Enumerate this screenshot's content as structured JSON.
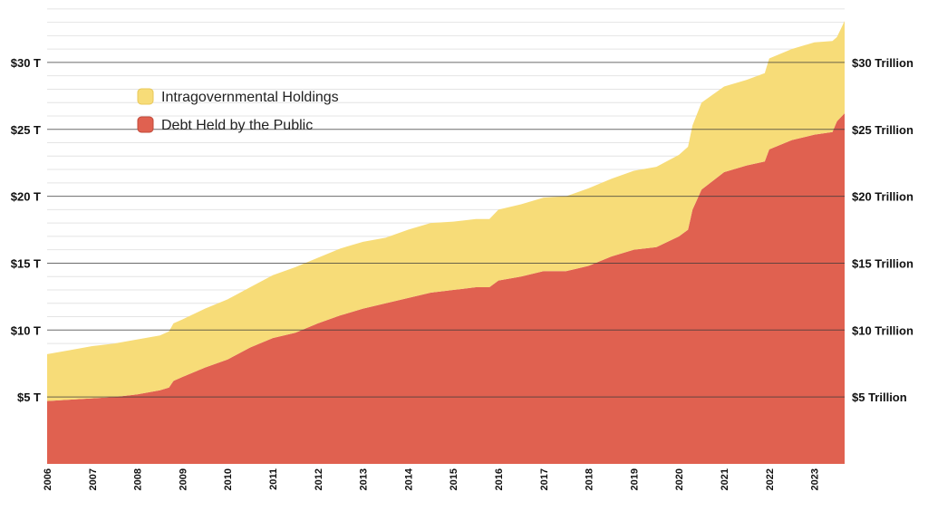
{
  "chart_data": {
    "type": "area",
    "stacked": true,
    "x_range": [
      2006.0,
      2023.67
    ],
    "ylim": [
      0,
      35
    ],
    "grid": true,
    "legend_placement": "top-left",
    "y_ticks_left": [
      {
        "value": 5,
        "label": "$5 T"
      },
      {
        "value": 10,
        "label": "$10 T"
      },
      {
        "value": 15,
        "label": "$15 T"
      },
      {
        "value": 20,
        "label": "$20 T"
      },
      {
        "value": 25,
        "label": "$25 T"
      },
      {
        "value": 30,
        "label": "$30 T"
      }
    ],
    "y_ticks_right": [
      {
        "value": 5,
        "label": "$5 Trillion"
      },
      {
        "value": 10,
        "label": "$10 Trillion"
      },
      {
        "value": 15,
        "label": "$15 Trillion"
      },
      {
        "value": 20,
        "label": "$20 Trillion"
      },
      {
        "value": 25,
        "label": "$25 Trillion"
      },
      {
        "value": 30,
        "label": "$30 Trillion"
      }
    ],
    "x_ticks": [
      "2006",
      "2007",
      "2008",
      "2009",
      "2010",
      "2011",
      "2012",
      "2013",
      "2014",
      "2015",
      "2016",
      "2017",
      "2018",
      "2019",
      "2020",
      "2021",
      "2022",
      "2023"
    ],
    "x": [
      2006.0,
      2006.5,
      2007.0,
      2007.5,
      2008.0,
      2008.5,
      2008.7,
      2008.8,
      2009.0,
      2009.5,
      2010.0,
      2010.5,
      2011.0,
      2011.5,
      2012.0,
      2012.5,
      2013.0,
      2013.5,
      2014.0,
      2014.5,
      2015.0,
      2015.5,
      2015.8,
      2016.0,
      2016.5,
      2017.0,
      2017.5,
      2018.0,
      2018.5,
      2019.0,
      2019.5,
      2020.0,
      2020.2,
      2020.3,
      2020.5,
      2021.0,
      2021.5,
      2021.9,
      2022.0,
      2022.5,
      2023.0,
      2023.4,
      2023.5,
      2023.67
    ],
    "series": [
      {
        "name": "Debt Held by the Public",
        "color": "#e06150",
        "values": [
          4.7,
          4.8,
          4.9,
          5.0,
          5.2,
          5.5,
          5.7,
          6.2,
          6.5,
          7.2,
          7.8,
          8.7,
          9.4,
          9.8,
          10.5,
          11.1,
          11.6,
          12.0,
          12.4,
          12.8,
          13.0,
          13.2,
          13.2,
          13.7,
          14.0,
          14.4,
          14.4,
          14.8,
          15.5,
          16.0,
          16.2,
          17.0,
          17.5,
          19.0,
          20.5,
          21.8,
          22.3,
          22.6,
          23.5,
          24.2,
          24.6,
          24.8,
          25.6,
          26.2
        ]
      },
      {
        "name": "Intragovernmental Holdings",
        "color": "#f7dc78",
        "values": [
          3.5,
          3.7,
          3.9,
          4.0,
          4.1,
          4.1,
          4.2,
          4.3,
          4.3,
          4.4,
          4.5,
          4.5,
          4.7,
          4.9,
          4.9,
          5.0,
          5.0,
          4.9,
          5.1,
          5.2,
          5.1,
          5.1,
          5.1,
          5.3,
          5.4,
          5.5,
          5.6,
          5.8,
          5.8,
          5.9,
          6.0,
          6.1,
          6.2,
          6.3,
          6.5,
          6.4,
          6.4,
          6.6,
          6.8,
          6.8,
          6.9,
          6.8,
          6.3,
          6.9
        ]
      }
    ]
  }
}
